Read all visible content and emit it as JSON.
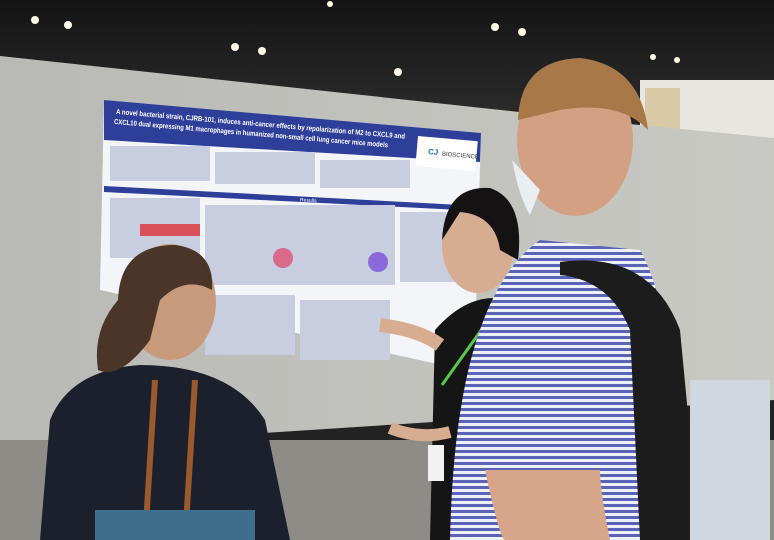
{
  "poster": {
    "title_lines": [
      "A novel bacterial strain, CJRB-101, induces anti-cancer effects by repolarization of M2 to CXCL9 and",
      "CXCL10 dual expressing M1 macrophages in humanized non-small cell lung cancer mice models"
    ],
    "logo": "CJ",
    "sponsor": "BIOSCIENCE",
    "section": "Results"
  }
}
